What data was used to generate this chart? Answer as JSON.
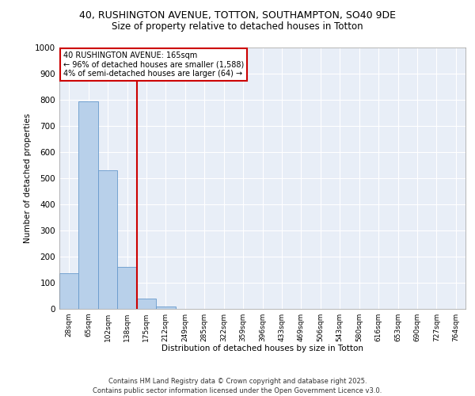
{
  "title_line1": "40, RUSHINGTON AVENUE, TOTTON, SOUTHAMPTON, SO40 9DE",
  "title_line2": "Size of property relative to detached houses in Totton",
  "xlabel": "Distribution of detached houses by size in Totton",
  "ylabel": "Number of detached properties",
  "categories": [
    "28sqm",
    "65sqm",
    "102sqm",
    "138sqm",
    "175sqm",
    "212sqm",
    "249sqm",
    "285sqm",
    "322sqm",
    "359sqm",
    "396sqm",
    "433sqm",
    "469sqm",
    "506sqm",
    "543sqm",
    "580sqm",
    "616sqm",
    "653sqm",
    "690sqm",
    "727sqm",
    "764sqm"
  ],
  "values": [
    135,
    795,
    530,
    160,
    38,
    10,
    0,
    0,
    0,
    0,
    0,
    0,
    0,
    0,
    0,
    0,
    0,
    0,
    0,
    0,
    0
  ],
  "bar_color": "#b8d0ea",
  "bar_edge_color": "#6699cc",
  "background_color": "#e8eef7",
  "grid_color": "#ffffff",
  "red_line_x": 3.5,
  "red_line_color": "#cc0000",
  "annotation_text": "40 RUSHINGTON AVENUE: 165sqm\n← 96% of detached houses are smaller (1,588)\n4% of semi-detached houses are larger (64) →",
  "annotation_box_color": "#cc0000",
  "footer_line1": "Contains HM Land Registry data © Crown copyright and database right 2025.",
  "footer_line2": "Contains public sector information licensed under the Open Government Licence v3.0.",
  "ylim": [
    0,
    1000
  ],
  "yticks": [
    0,
    100,
    200,
    300,
    400,
    500,
    600,
    700,
    800,
    900,
    1000
  ]
}
